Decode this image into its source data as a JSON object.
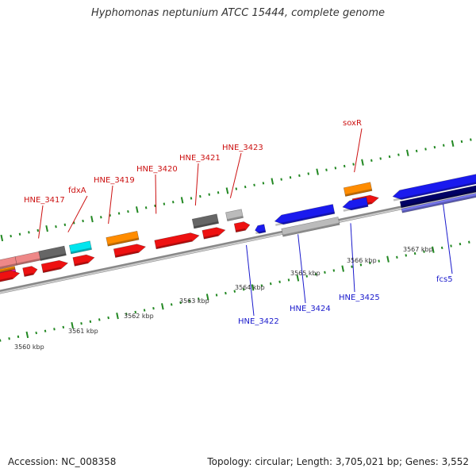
{
  "header": {
    "title": "Hyphomonas neptunium ATCC 15444, complete genome"
  },
  "footer": {
    "accession": "Accession: NC_008358",
    "topology": "Topology: circular; Length: 3,705,021 bp; Genes: 3,552"
  },
  "axis": {
    "tick_labels": [
      "3560 kbp",
      "3561 kbp",
      "3562 kbp",
      "3563 kbp",
      "3564 kbp",
      "3565 kbp",
      "3566 kbp",
      "3567 kbp"
    ]
  },
  "colors": {
    "backbone": "#888888",
    "upper_label": "#cc1111",
    "lower_label": "#1a1acc",
    "red": "#ee1111",
    "orange": "#ff8c00",
    "cyan": "#00e5ee",
    "gray_dark": "#666666",
    "gray_light": "#bbbbbb",
    "pink": "#ee8888",
    "magenta": "#ff1aa0",
    "blue": "#1a1aee",
    "navy": "#000066",
    "violet": "#7777ee",
    "tick_green": "#228822"
  },
  "features": {
    "upper_labels": [
      {
        "name": "HNE_3417",
        "t": 0.113
      },
      {
        "name": "fdxA",
        "t": 0.173
      },
      {
        "name": "HNE_3419",
        "t": 0.255
      },
      {
        "name": "HNE_3420",
        "t": 0.352
      },
      {
        "name": "HNE_3421",
        "t": 0.432
      },
      {
        "name": "HNE_3423",
        "t": 0.503
      },
      {
        "name": "soxR",
        "t": 0.755
      }
    ],
    "lower_labels": [
      {
        "name": "HNE_3422",
        "t": 0.515
      },
      {
        "name": "HNE_3424",
        "t": 0.62
      },
      {
        "name": "HNE_3425",
        "t": 0.727
      },
      {
        "name": "fcs5",
        "t": 0.915
      }
    ]
  }
}
